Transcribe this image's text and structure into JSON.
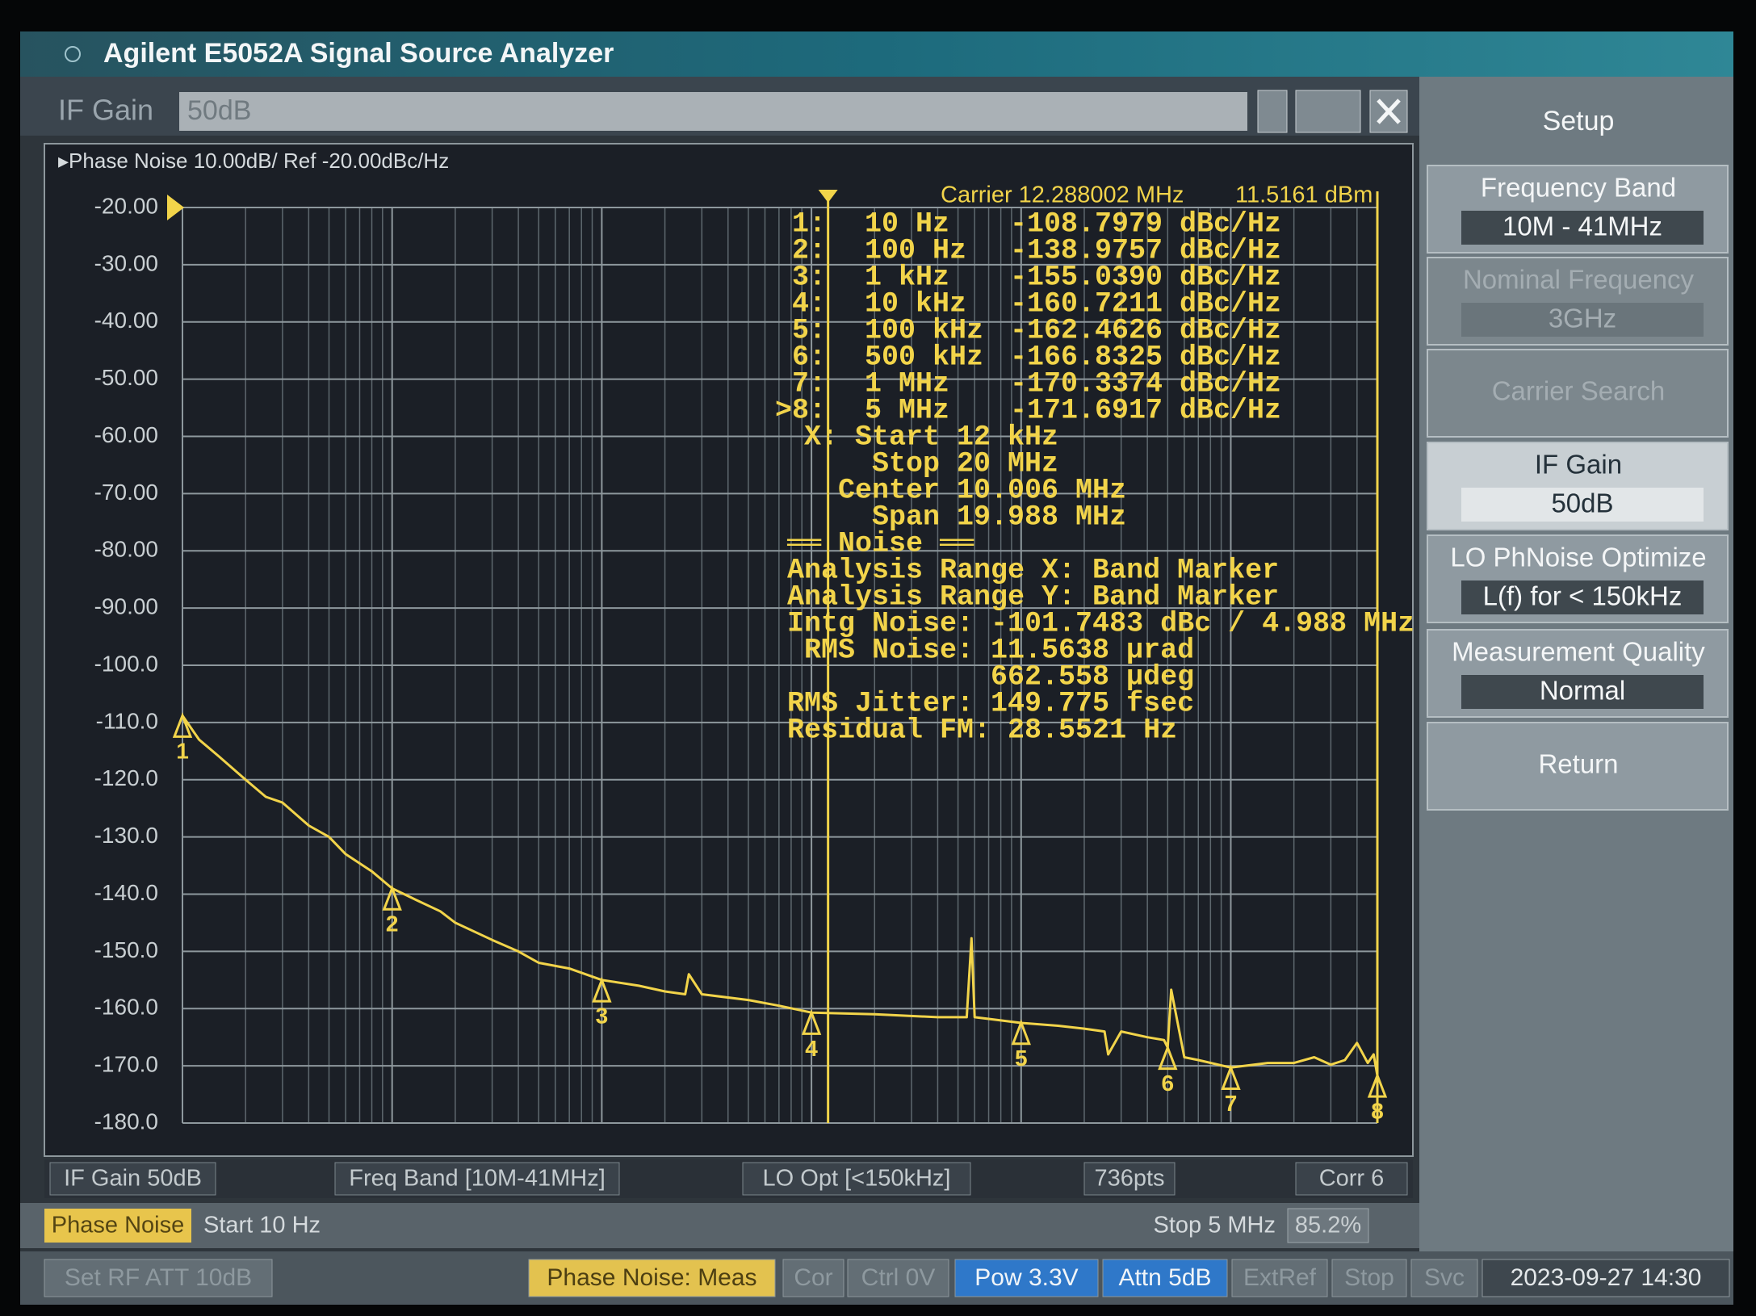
{
  "window": {
    "title": "Agilent E5052A Signal Source Analyzer"
  },
  "entry": {
    "label": "IF Gain",
    "value": "50dB"
  },
  "softkey_title": "Setup",
  "softkeys": [
    {
      "label": "Frequency Band",
      "value": "10M - 41MHz",
      "enabled": true,
      "selected": false
    },
    {
      "label": "Nominal Frequency",
      "value": "3GHz",
      "enabled": false,
      "selected": false
    },
    {
      "label": "Carrier Search",
      "enabled": false,
      "selected": false
    },
    {
      "label": "IF Gain",
      "value": "50dB",
      "enabled": true,
      "selected": true
    },
    {
      "label": "LO PhNoise Optimize",
      "value": "L(f) for < 150kHz",
      "enabled": true,
      "selected": false
    },
    {
      "label": "Measurement Quality",
      "value": "Normal",
      "enabled": true,
      "selected": false
    },
    {
      "label": "Return",
      "enabled": true,
      "selected": false
    }
  ],
  "chart_data": {
    "type": "line",
    "header": "▸Phase Noise 10.00dB/ Ref -20.00dBc/Hz",
    "xscale": "log",
    "xlim": [
      10,
      5000000
    ],
    "xticks": [
      10,
      100,
      1000,
      10000,
      100000,
      1000000
    ],
    "ylim": [
      -180,
      -20
    ],
    "yticks": [
      {
        "value": -20,
        "label": "-20.00"
      },
      {
        "value": -30,
        "label": "-30.00"
      },
      {
        "value": -40,
        "label": "-40.00"
      },
      {
        "value": -50,
        "label": "-50.00"
      },
      {
        "value": -60,
        "label": "-60.00"
      },
      {
        "value": -70,
        "label": "-70.00"
      },
      {
        "value": -80,
        "label": "-80.00"
      },
      {
        "value": -90,
        "label": "-90.00"
      },
      {
        "value": -100,
        "label": "-100.0"
      },
      {
        "value": -110,
        "label": "-110.0"
      },
      {
        "value": -120,
        "label": "-120.0"
      },
      {
        "value": -130,
        "label": "-130.0"
      },
      {
        "value": -140,
        "label": "-140.0"
      },
      {
        "value": -150,
        "label": "-150.0"
      },
      {
        "value": -160,
        "label": "-160.0"
      },
      {
        "value": -170,
        "label": "-170.0"
      },
      {
        "value": -180,
        "label": "-180.0"
      }
    ],
    "grid": true,
    "color": "#f2d44a",
    "x": [
      10,
      12,
      15,
      20,
      25,
      30,
      40,
      50,
      60,
      80,
      100,
      130,
      170,
      200,
      300,
      400,
      500,
      700,
      1000,
      1500,
      2000,
      2500,
      2600,
      3000,
      5000,
      7000,
      10000,
      20000,
      40000,
      55000,
      58000,
      60000,
      70000,
      100000,
      150000,
      200000,
      250000,
      260000,
      300000,
      400000,
      480000,
      500000,
      520000,
      600000,
      700000,
      1000000,
      1500000,
      2000000,
      2500000,
      3000000,
      3500000,
      4000000,
      4500000,
      4800000,
      5000000
    ],
    "values": [
      -108.8,
      -113,
      -116,
      -120,
      -123,
      -124,
      -128,
      -130,
      -133,
      -136,
      -139,
      -141,
      -143,
      -145,
      -148,
      -150,
      -152,
      -153,
      -155,
      -156,
      -157,
      -157.5,
      -154,
      -157.5,
      -158.5,
      -159.5,
      -160.7,
      -161,
      -161.5,
      -161.5,
      -147.7,
      -161.5,
      -161.8,
      -162.5,
      -163,
      -163.5,
      -164,
      -168,
      -164,
      -165,
      -165.5,
      -166.8,
      -156.7,
      -168.5,
      -169,
      -170.3,
      -169.5,
      -169.5,
      -168.5,
      -169.8,
      -169,
      -166,
      -169.5,
      -168,
      -171.7
    ],
    "band_marker_x": 12000,
    "carrier": "Carrier 12.288002 MHz",
    "carrier_power": "11.5161 dBm",
    "markers": [
      {
        "label": "1",
        "row": "1:",
        "freq": "10 Hz",
        "x": 10,
        "value": -108.7979,
        "value_label": "-108.7979 dBc/Hz"
      },
      {
        "label": "2",
        "row": "2:",
        "freq": "100 Hz",
        "x": 100,
        "value": -138.9757,
        "value_label": "-138.9757 dBc/Hz"
      },
      {
        "label": "3",
        "row": "3:",
        "freq": "1 kHz",
        "x": 1000,
        "value": -155.039,
        "value_label": "-155.0390 dBc/Hz"
      },
      {
        "label": "4",
        "row": "4:",
        "freq": "10 kHz",
        "x": 10000,
        "value": -160.7211,
        "value_label": "-160.7211 dBc/Hz"
      },
      {
        "label": "5",
        "row": "5:",
        "freq": "100 kHz",
        "x": 100000,
        "value": -162.4626,
        "value_label": "-162.4626 dBc/Hz"
      },
      {
        "label": "6",
        "row": "6:",
        "freq": "500 kHz",
        "x": 500000,
        "value": -166.8325,
        "value_label": "-166.8325 dBc/Hz"
      },
      {
        "label": "7",
        "row": "7:",
        "freq": "1 MHz",
        "x": 1000000,
        "value": -170.3374,
        "value_label": "-170.3374 dBc/Hz"
      },
      {
        "label": "8",
        "row": ">8:",
        "freq": "5 MHz",
        "x": 5000000,
        "value": -171.6917,
        "value_label": "-171.6917 dBc/Hz"
      }
    ],
    "readout": [
      " X: Start 12 kHz",
      "     Stop 20 MHz",
      "   Center 10.006 MHz",
      "     Span 19.988 MHz",
      "══ Noise ══",
      "Analysis Range X: Band Marker",
      "Analysis Range Y: Band Marker",
      "Intg Noise: -101.7483 dBc / 4.988 MHz",
      " RMS Noise: 11.5638 µrad",
      "            662.558 µdeg",
      "RMS Jitter: 149.775 fsec",
      "Residual FM: 28.5521 Hz"
    ]
  },
  "info_bar": [
    "IF Gain 50dB",
    "Freq Band [10M-41MHz]",
    "LO Opt [<150kHz]",
    "736pts",
    "Corr 6"
  ],
  "status": {
    "mode": "Phase Noise",
    "start": "Start 10 Hz",
    "stop": "Stop 5 MHz",
    "progress": "85.2%"
  },
  "footer": [
    {
      "text": "Set RF ATT 10dB",
      "style": "dim"
    },
    {
      "text": "Phase Noise: Meas",
      "style": "yellow"
    },
    {
      "text": "Cor",
      "style": "dim"
    },
    {
      "text": "Ctrl 0V",
      "style": "dim"
    },
    {
      "text": "Pow 3.3V",
      "style": "blue"
    },
    {
      "text": "Attn 5dB",
      "style": "blue"
    },
    {
      "text": "ExtRef",
      "style": "dim"
    },
    {
      "text": "Stop",
      "style": "dim"
    },
    {
      "text": "Svc",
      "style": "dim"
    },
    {
      "text": "2023-09-27 14:30",
      "style": "plain"
    }
  ]
}
